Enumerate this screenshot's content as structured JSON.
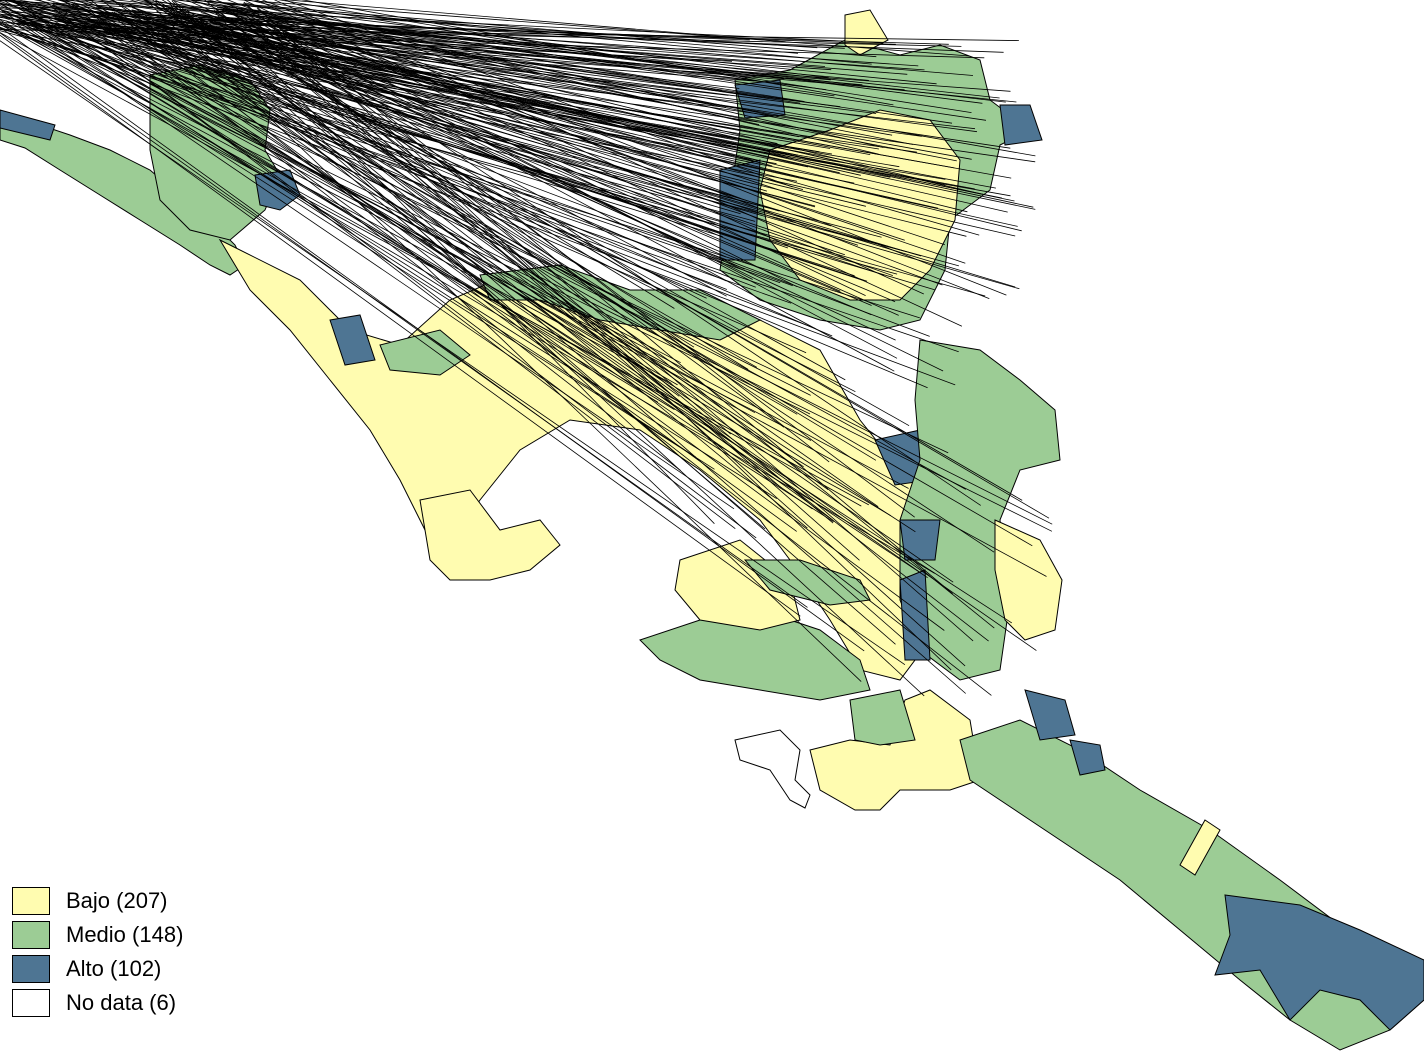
{
  "colors": {
    "bajo": "#fffcb0",
    "medio": "#9ccc95",
    "alto": "#4e7593",
    "nodata": "#ffffff",
    "stroke": "#000000"
  },
  "legend": {
    "items": [
      {
        "key": "bajo",
        "label": "Bajo (207)"
      },
      {
        "key": "medio",
        "label": "Medio (148)"
      },
      {
        "key": "alto",
        "label": "Alto (102)"
      },
      {
        "key": "nodata",
        "label": "No data (6)"
      }
    ]
  }
}
